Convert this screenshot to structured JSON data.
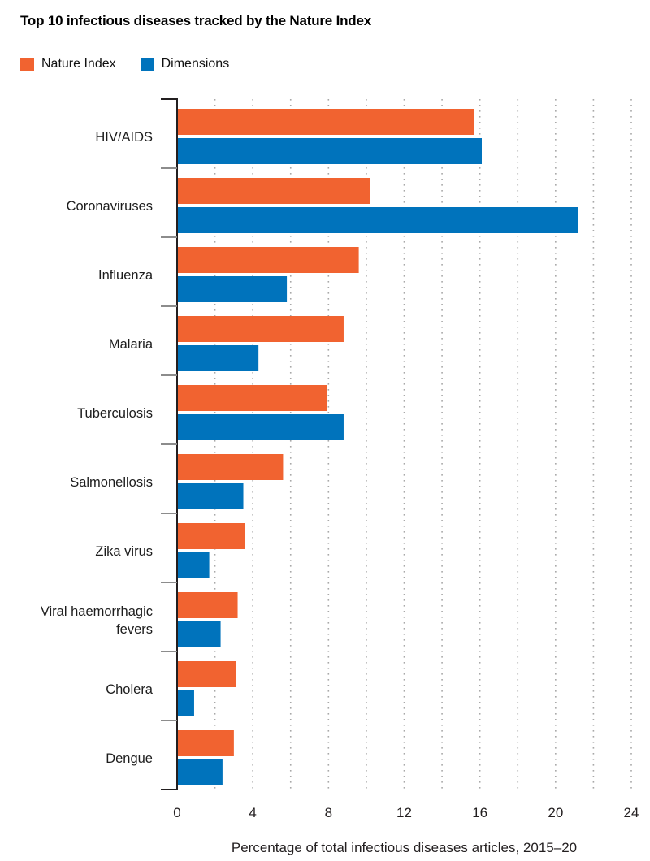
{
  "page": {
    "background": "#ffffff"
  },
  "chart_data": {
    "type": "bar",
    "orientation": "horizontal",
    "title": "Top 10 infectious diseases tracked by the Nature Index",
    "xlabel": "Percentage of total infectious diseases articles, 2015–20",
    "xlim": [
      0,
      24
    ],
    "xticks": [
      0,
      4,
      8,
      12,
      16,
      20,
      24
    ],
    "gridline_step": 2,
    "grid": "dotted-vertical",
    "legend_position": "top-left",
    "categories": [
      "HIV/AIDS",
      "Coronaviruses",
      "Influenza",
      "Malaria",
      "Tuberculosis",
      "Salmonellosis",
      "Zika virus",
      "Viral haemorrhagic fevers",
      "Cholera",
      "Dengue"
    ],
    "category_wrap": {
      "7": [
        "Viral haemorrhagic",
        "fevers"
      ]
    },
    "series": [
      {
        "name": "Nature Index",
        "color": "#F16330",
        "values": [
          15.7,
          10.2,
          9.6,
          8.8,
          7.9,
          5.6,
          3.6,
          3.2,
          3.1,
          3.0
        ]
      },
      {
        "name": "Dimensions",
        "color": "#0073BC",
        "values": [
          16.1,
          21.2,
          5.8,
          4.3,
          8.8,
          3.5,
          1.7,
          2.3,
          0.9,
          2.4
        ]
      }
    ],
    "axis_color": "#231f20",
    "gridline_color": "#a8a8a8",
    "tick_color_minor": "#8c8c8c"
  }
}
